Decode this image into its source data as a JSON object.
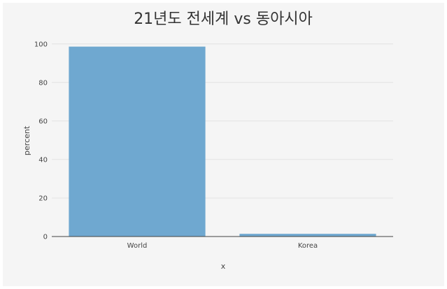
{
  "chart_data": {
    "type": "bar",
    "title": "21년도 전세계 vs 동아시아",
    "xlabel": "x",
    "ylabel": "percent",
    "categories": [
      "World",
      "Korea"
    ],
    "values": [
      98.6,
      1.4
    ],
    "ylim": [
      0,
      105
    ],
    "yticks": [
      0,
      20,
      40,
      60,
      80,
      100
    ],
    "grid": true,
    "bar_color": "#6fa8d0",
    "background_color": "#f5f5f5",
    "grid_color": "#e2e2e2"
  }
}
